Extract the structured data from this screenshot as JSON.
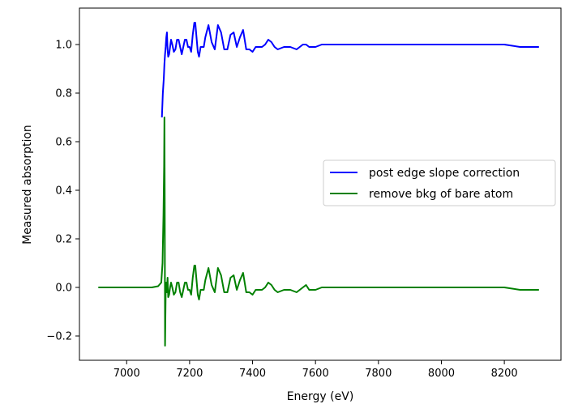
{
  "chart_data": {
    "type": "line",
    "title": "",
    "xlabel": "Energy (eV)",
    "ylabel": "Measured absorption",
    "xlim": [
      6850,
      8380
    ],
    "ylim": [
      -0.3,
      1.15
    ],
    "x_ticks": [
      7000,
      7200,
      7400,
      7600,
      7800,
      8000,
      8200
    ],
    "y_ticks": [
      -0.2,
      0.0,
      0.2,
      0.4,
      0.6,
      0.8,
      1.0
    ],
    "y_tick_labels": [
      "−0.2",
      "0.0",
      "0.2",
      "0.4",
      "0.6",
      "0.8",
      "1.0"
    ],
    "grid": false,
    "legend_position": "center-right",
    "series": [
      {
        "name": "post edge slope correction",
        "color": "#0000ff",
        "x": [
          7112,
          7115,
          7118,
          7120,
          7122,
          7124,
          7126,
          7128,
          7130,
          7132,
          7135,
          7138,
          7141,
          7145,
          7150,
          7155,
          7160,
          7165,
          7170,
          7175,
          7180,
          7185,
          7190,
          7195,
          7200,
          7205,
          7210,
          7215,
          7218,
          7222,
          7226,
          7230,
          7235,
          7240,
          7245,
          7250,
          7260,
          7270,
          7280,
          7290,
          7300,
          7310,
          7320,
          7330,
          7340,
          7350,
          7360,
          7370,
          7380,
          7390,
          7400,
          7410,
          7420,
          7430,
          7440,
          7450,
          7460,
          7470,
          7480,
          7500,
          7520,
          7540,
          7560,
          7570,
          7580,
          7600,
          7620,
          7650,
          7680,
          7700,
          7750,
          7800,
          7850,
          7900,
          7950,
          8000,
          8050,
          8100,
          8150,
          8200,
          8250,
          8310
        ],
        "y": [
          0.7,
          0.8,
          0.86,
          0.92,
          0.96,
          0.99,
          1.03,
          1.05,
          0.98,
          0.95,
          0.96,
          0.99,
          1.02,
          1.0,
          0.97,
          0.98,
          1.02,
          1.02,
          0.99,
          0.96,
          0.99,
          1.02,
          1.02,
          0.99,
          0.99,
          0.97,
          1.04,
          1.09,
          1.09,
          1.03,
          0.97,
          0.95,
          0.99,
          0.99,
          0.99,
          1.03,
          1.08,
          1.01,
          0.98,
          1.08,
          1.05,
          0.98,
          0.98,
          1.04,
          1.05,
          0.99,
          1.03,
          1.06,
          0.98,
          0.98,
          0.97,
          0.99,
          0.99,
          0.99,
          1.0,
          1.02,
          1.01,
          0.99,
          0.98,
          0.99,
          0.99,
          0.98,
          1.0,
          1.0,
          0.99,
          0.99,
          1.0,
          1.0,
          1.0,
          1.0,
          1.0,
          1.0,
          1.0,
          1.0,
          1.0,
          1.0,
          1.0,
          1.0,
          1.0,
          1.0,
          0.99,
          0.99
        ]
      },
      {
        "name": "remove bkg of bare atom",
        "color": "#008000",
        "x": [
          6910,
          6950,
          7000,
          7050,
          7080,
          7100,
          7110,
          7114,
          7117,
          7119,
          7120,
          7121,
          7122,
          7124,
          7126,
          7128,
          7130,
          7132,
          7135,
          7138,
          7141,
          7145,
          7150,
          7155,
          7160,
          7165,
          7170,
          7175,
          7180,
          7185,
          7190,
          7195,
          7200,
          7205,
          7210,
          7215,
          7218,
          7222,
          7226,
          7230,
          7235,
          7240,
          7245,
          7250,
          7260,
          7270,
          7280,
          7290,
          7300,
          7310,
          7320,
          7330,
          7340,
          7350,
          7360,
          7370,
          7380,
          7390,
          7400,
          7410,
          7420,
          7430,
          7440,
          7450,
          7460,
          7470,
          7480,
          7500,
          7520,
          7540,
          7560,
          7570,
          7580,
          7600,
          7620,
          7650,
          7680,
          7700,
          7750,
          7800,
          7850,
          7900,
          7950,
          8000,
          8050,
          8100,
          8150,
          8200,
          8250,
          8310
        ],
        "y": [
          0.0,
          0.0,
          0.0,
          0.0,
          0.0,
          0.005,
          0.02,
          0.1,
          0.3,
          0.5,
          0.7,
          0.35,
          -0.24,
          -0.02,
          0.02,
          -0.02,
          0.04,
          -0.04,
          -0.03,
          0.0,
          0.02,
          0.0,
          -0.03,
          -0.02,
          0.02,
          0.02,
          -0.02,
          -0.04,
          -0.01,
          0.02,
          0.02,
          -0.01,
          -0.01,
          -0.03,
          0.04,
          0.09,
          0.09,
          0.03,
          -0.03,
          -0.05,
          -0.01,
          -0.01,
          -0.01,
          0.03,
          0.08,
          0.01,
          -0.02,
          0.08,
          0.05,
          -0.02,
          -0.02,
          0.04,
          0.05,
          -0.01,
          0.03,
          0.06,
          -0.02,
          -0.02,
          -0.03,
          -0.01,
          -0.01,
          -0.01,
          0.0,
          0.02,
          0.01,
          -0.01,
          -0.02,
          -0.01,
          -0.01,
          -0.02,
          0.0,
          0.01,
          -0.01,
          -0.01,
          0.0,
          0.0,
          0.0,
          0.0,
          0.0,
          0.0,
          0.0,
          0.0,
          0.0,
          0.0,
          0.0,
          0.0,
          0.0,
          0.0,
          -0.01,
          -0.01
        ]
      }
    ]
  }
}
